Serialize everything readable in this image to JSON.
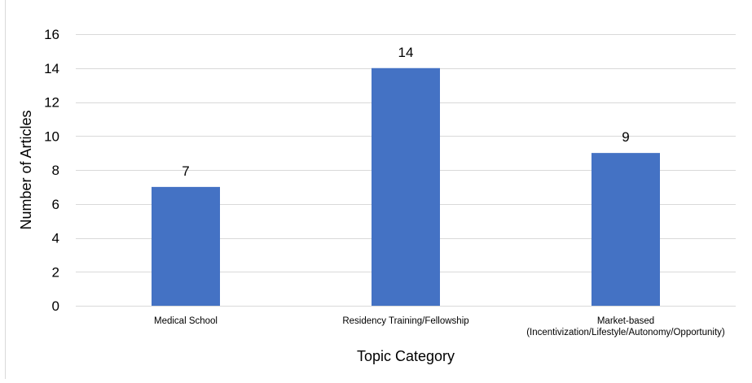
{
  "chart_data": {
    "type": "bar",
    "categories": [
      [
        "Medical School"
      ],
      [
        "Residency Training/Fellowship"
      ],
      [
        "Market-based",
        "(Incentivization/Lifestyle/Autonomy/Opportunity)"
      ]
    ],
    "values": [
      7,
      14,
      9
    ],
    "data_labels": [
      "7",
      "14",
      "9"
    ],
    "title": "",
    "xlabel": "Topic Category",
    "ylabel": "Number of Articles",
    "ylim": [
      0,
      16
    ],
    "yticks": [
      0,
      2,
      4,
      6,
      8,
      10,
      12,
      14,
      16
    ],
    "grid": true,
    "legend": "none",
    "colors": {
      "bar": "#4472C4",
      "grid": "#d9d9d9",
      "axis_text": "#000000",
      "frame": "#d9d9d9"
    }
  }
}
